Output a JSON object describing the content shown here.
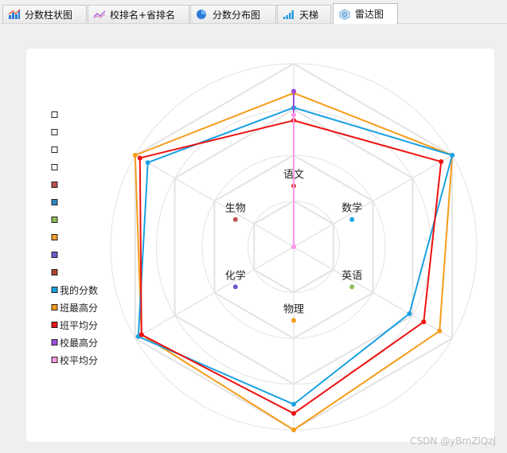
{
  "tabs": [
    {
      "label": "分数柱状图",
      "icon": "bar-chart-icon",
      "active": false
    },
    {
      "label": "校排名+省排名",
      "icon": "line-chart-icon",
      "active": false
    },
    {
      "label": "分数分布图",
      "icon": "pie-chart-icon",
      "active": false
    },
    {
      "label": "天梯",
      "icon": "ladder-chart-icon",
      "active": false
    },
    {
      "label": "雷达图",
      "icon": "radar-chart-icon",
      "active": true
    }
  ],
  "watermark": "CSDN @yBmZlQzJ",
  "chart_data": {
    "type": "radar",
    "indicators": [
      "语文",
      "数学",
      "英语",
      "物理",
      "化学",
      "生物"
    ],
    "max": 100,
    "legend_placement": "left",
    "legend": [
      {
        "name": "",
        "color": "#ffffff"
      },
      {
        "name": "",
        "color": "#ffffff"
      },
      {
        "name": "",
        "color": "#ffffff"
      },
      {
        "name": "",
        "color": "#ffffff"
      },
      {
        "name": "",
        "color": "#c0504d"
      },
      {
        "name": "",
        "color": "#2e86c1"
      },
      {
        "name": "",
        "color": "#8fbc5a"
      },
      {
        "name": "",
        "color": "#f0a030"
      },
      {
        "name": "",
        "color": "#6a5acd"
      },
      {
        "name": "",
        "color": "#b0452f"
      },
      {
        "name": "我的分数",
        "color": "#1ba1e2"
      },
      {
        "name": "班最高分",
        "color": "#f59c1a"
      },
      {
        "name": "班平均分",
        "color": "#ee1111"
      },
      {
        "name": "校最高分",
        "color": "#9c4dde"
      },
      {
        "name": "校平均分",
        "color": "#ff99e6"
      }
    ],
    "series": [
      {
        "name": "我的分数",
        "color": "#1ba1e2",
        "values": [
          76,
          100,
          73,
          86,
          98,
          92
        ]
      },
      {
        "name": "班最高分",
        "color": "#f59c1a",
        "values": [
          84,
          100,
          92,
          100,
          96,
          100
        ]
      },
      {
        "name": "班平均分",
        "color": "#ee1111",
        "values": [
          69,
          93,
          82,
          91,
          96,
          97
        ]
      },
      {
        "name": "校最高分",
        "color": "#9c4dde",
        "values": [
          85,
          0,
          0,
          0,
          0,
          0
        ]
      },
      {
        "name": "校平均分",
        "color": "#ff99e6",
        "values": [
          72,
          0,
          0,
          0,
          0,
          0
        ]
      }
    ],
    "inner_labels": [
      {
        "text": "语文",
        "marker_color": "#e04040"
      },
      {
        "text": "数学",
        "marker_color": "#1ba1e2"
      },
      {
        "text": "英语",
        "marker_color": "#8fbc5a"
      },
      {
        "text": "物理",
        "marker_color": "#f59c1a"
      },
      {
        "text": "化学",
        "marker_color": "#6a5acd"
      },
      {
        "text": "生物",
        "marker_color": "#c0504d"
      }
    ]
  }
}
